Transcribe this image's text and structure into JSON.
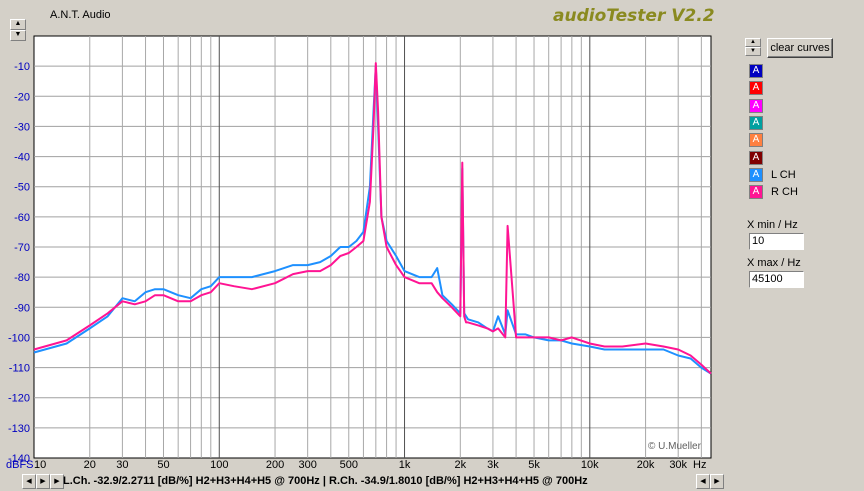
{
  "app": {
    "name": "A.N.T. Audio",
    "title": "audioTester V2.2"
  },
  "right_panel": {
    "clear_button": "clear curves",
    "curves": [
      {
        "glyph": "A",
        "color": "#0000c0",
        "label": ""
      },
      {
        "glyph": "A",
        "color": "#ff0000",
        "label": ""
      },
      {
        "glyph": "A",
        "color": "#ff00ff",
        "label": ""
      },
      {
        "glyph": "A",
        "color": "#00a0a0",
        "label": ""
      },
      {
        "glyph": "A",
        "color": "#ff8040",
        "label": ""
      },
      {
        "glyph": "A",
        "color": "#800000",
        "label": ""
      },
      {
        "glyph": "A",
        "color": "#1e90ff",
        "label": "L CH"
      },
      {
        "glyph": "A",
        "color": "#ff1493",
        "label": "R CH"
      }
    ],
    "xmin_label": "X min / Hz",
    "xmin_value": "10",
    "xmax_label": "X max / Hz",
    "xmax_value": "45100"
  },
  "status": {
    "text": "L.Ch. -32.9/2.2711 [dB/%] H2+H3+H4+H5 @ 700Hz  | R.Ch. -34.9/1.8010 [dB/%] H2+H3+H4+H5 @ 700Hz"
  },
  "chart_data": {
    "type": "line",
    "xscale": "log",
    "xlim": [
      10,
      45100
    ],
    "ylim": [
      -140,
      0
    ],
    "grid": true,
    "ylabel": "dBFS",
    "xlabel": "Hz",
    "yticks": [
      -10,
      -20,
      -30,
      -40,
      -50,
      -60,
      -70,
      -80,
      -90,
      -100,
      -110,
      -120,
      -130,
      -140
    ],
    "xticks": [
      {
        "v": 10,
        "label": "10"
      },
      {
        "v": 20,
        "label": "20"
      },
      {
        "v": 30,
        "label": "30"
      },
      {
        "v": 50,
        "label": "50"
      },
      {
        "v": 100,
        "label": "100"
      },
      {
        "v": 200,
        "label": "200"
      },
      {
        "v": 300,
        "label": "300"
      },
      {
        "v": 500,
        "label": "500"
      },
      {
        "v": 1000,
        "label": "1k"
      },
      {
        "v": 2000,
        "label": "2k"
      },
      {
        "v": 3000,
        "label": "3k"
      },
      {
        "v": 5000,
        "label": "5k"
      },
      {
        "v": 10000,
        "label": "10k"
      },
      {
        "v": 20000,
        "label": "20k"
      },
      {
        "v": 30000,
        "label": "30k"
      }
    ],
    "annotation": "© U.Mueller",
    "series": [
      {
        "name": "L CH",
        "color": "#1e90ff",
        "x": [
          10,
          15,
          20,
          25,
          30,
          35,
          40,
          45,
          50,
          60,
          70,
          80,
          90,
          100,
          120,
          150,
          200,
          250,
          300,
          350,
          400,
          450,
          500,
          550,
          600,
          650,
          680,
          700,
          720,
          750,
          800,
          900,
          1000,
          1200,
          1400,
          1500,
          1600,
          1800,
          2000,
          2050,
          2100,
          2150,
          2200,
          2500,
          2800,
          3000,
          3200,
          3500,
          3600,
          4000,
          4500,
          5000,
          6000,
          7000,
          8000,
          10000,
          12000,
          15000,
          20000,
          25000,
          30000,
          35000,
          40000,
          45100
        ],
        "y": [
          -105,
          -102,
          -97,
          -93,
          -87,
          -88,
          -85,
          -84,
          -84,
          -86,
          -87,
          -84,
          -83,
          -80,
          -80,
          -80,
          -78,
          -76,
          -76,
          -75,
          -73,
          -70,
          -70,
          -68,
          -65,
          -50,
          -25,
          -10,
          -30,
          -60,
          -68,
          -73,
          -78,
          -80,
          -80,
          -77,
          -86,
          -89,
          -92,
          -44,
          -92,
          -93,
          -94,
          -95,
          -97,
          -98,
          -93,
          -99,
          -91,
          -99,
          -99,
          -100,
          -101,
          -101,
          -102,
          -103,
          -104,
          -104,
          -104,
          -104,
          -106,
          -107,
          -110,
          -112
        ]
      },
      {
        "name": "R CH",
        "color": "#ff1493",
        "x": [
          10,
          15,
          20,
          25,
          30,
          35,
          40,
          45,
          50,
          60,
          70,
          80,
          90,
          100,
          120,
          150,
          200,
          250,
          300,
          350,
          400,
          450,
          500,
          550,
          600,
          650,
          680,
          700,
          720,
          750,
          800,
          900,
          1000,
          1200,
          1400,
          1500,
          1600,
          1800,
          2000,
          2050,
          2100,
          2150,
          2200,
          2500,
          2800,
          3000,
          3200,
          3500,
          3600,
          4000,
          4500,
          5000,
          6000,
          7000,
          8000,
          10000,
          12000,
          15000,
          20000,
          25000,
          30000,
          35000,
          40000,
          45100
        ],
        "y": [
          -104,
          -101,
          -96,
          -92,
          -88,
          -89,
          -88,
          -86,
          -86,
          -88,
          -88,
          -86,
          -85,
          -82,
          -83,
          -84,
          -82,
          -79,
          -78,
          -78,
          -76,
          -73,
          -72,
          -70,
          -68,
          -55,
          -30,
          -9,
          -25,
          -60,
          -70,
          -76,
          -80,
          -82,
          -82,
          -85,
          -87,
          -90,
          -93,
          -42,
          -93,
          -95,
          -95,
          -96,
          -97,
          -98,
          -97,
          -100,
          -63,
          -100,
          -100,
          -100,
          -100,
          -101,
          -100,
          -102,
          -103,
          -103,
          -102,
          -103,
          -104,
          -106,
          -109,
          -112
        ]
      }
    ]
  }
}
